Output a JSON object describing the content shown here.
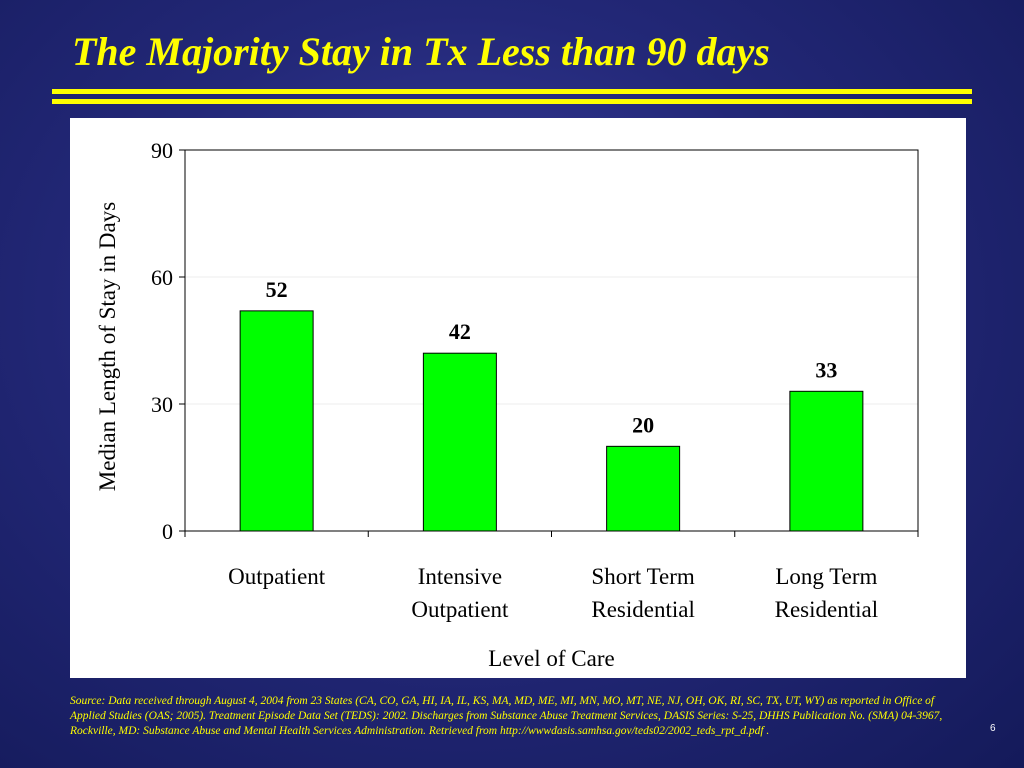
{
  "slide": {
    "title": "The Majority Stay in Tx Less than 90 days",
    "source": "Source: Data received through August 4, 2004 from 23 States (CA, CO, GA, HI, IA, IL, KS, MA, MD, ME, MI, MN, MO, MT, NE, NJ, OH, OK, RI, SC, TX, UT, WY)  as reported in Office of Applied Studies (OAS;  2005). Treatment Episode Data Set (TEDS): 2002. Discharges from Substance Abuse Treatment Services, DASIS Series: S-25, DHHS Publication No. (SMA) 04-3967, Rockville, MD: Substance Abuse and Mental Health Services Administration. Retrieved from http://wwwdasis.samhsa.gov/teds02/2002_teds_rpt_d.pdf .",
    "page_number": "6",
    "colors": {
      "background": "#232878",
      "title": "#ffff00",
      "bar": "#00ff00"
    }
  },
  "chart_data": {
    "type": "bar",
    "categories": [
      [
        "Outpatient"
      ],
      [
        "Intensive",
        "Outpatient"
      ],
      [
        "Short Term",
        "Residential"
      ],
      [
        "Long Term",
        "Residential"
      ]
    ],
    "values": [
      52,
      42,
      20,
      33
    ],
    "data_labels": [
      "52",
      "42",
      "20",
      "33"
    ],
    "xlabel": "Level of Care",
    "ylabel": "Median Length of Stay in Days",
    "ylim": [
      0,
      90
    ],
    "yticks": [
      0,
      30,
      60,
      90
    ],
    "grid": true,
    "legend": "none",
    "bar_color": "#00ff00"
  }
}
